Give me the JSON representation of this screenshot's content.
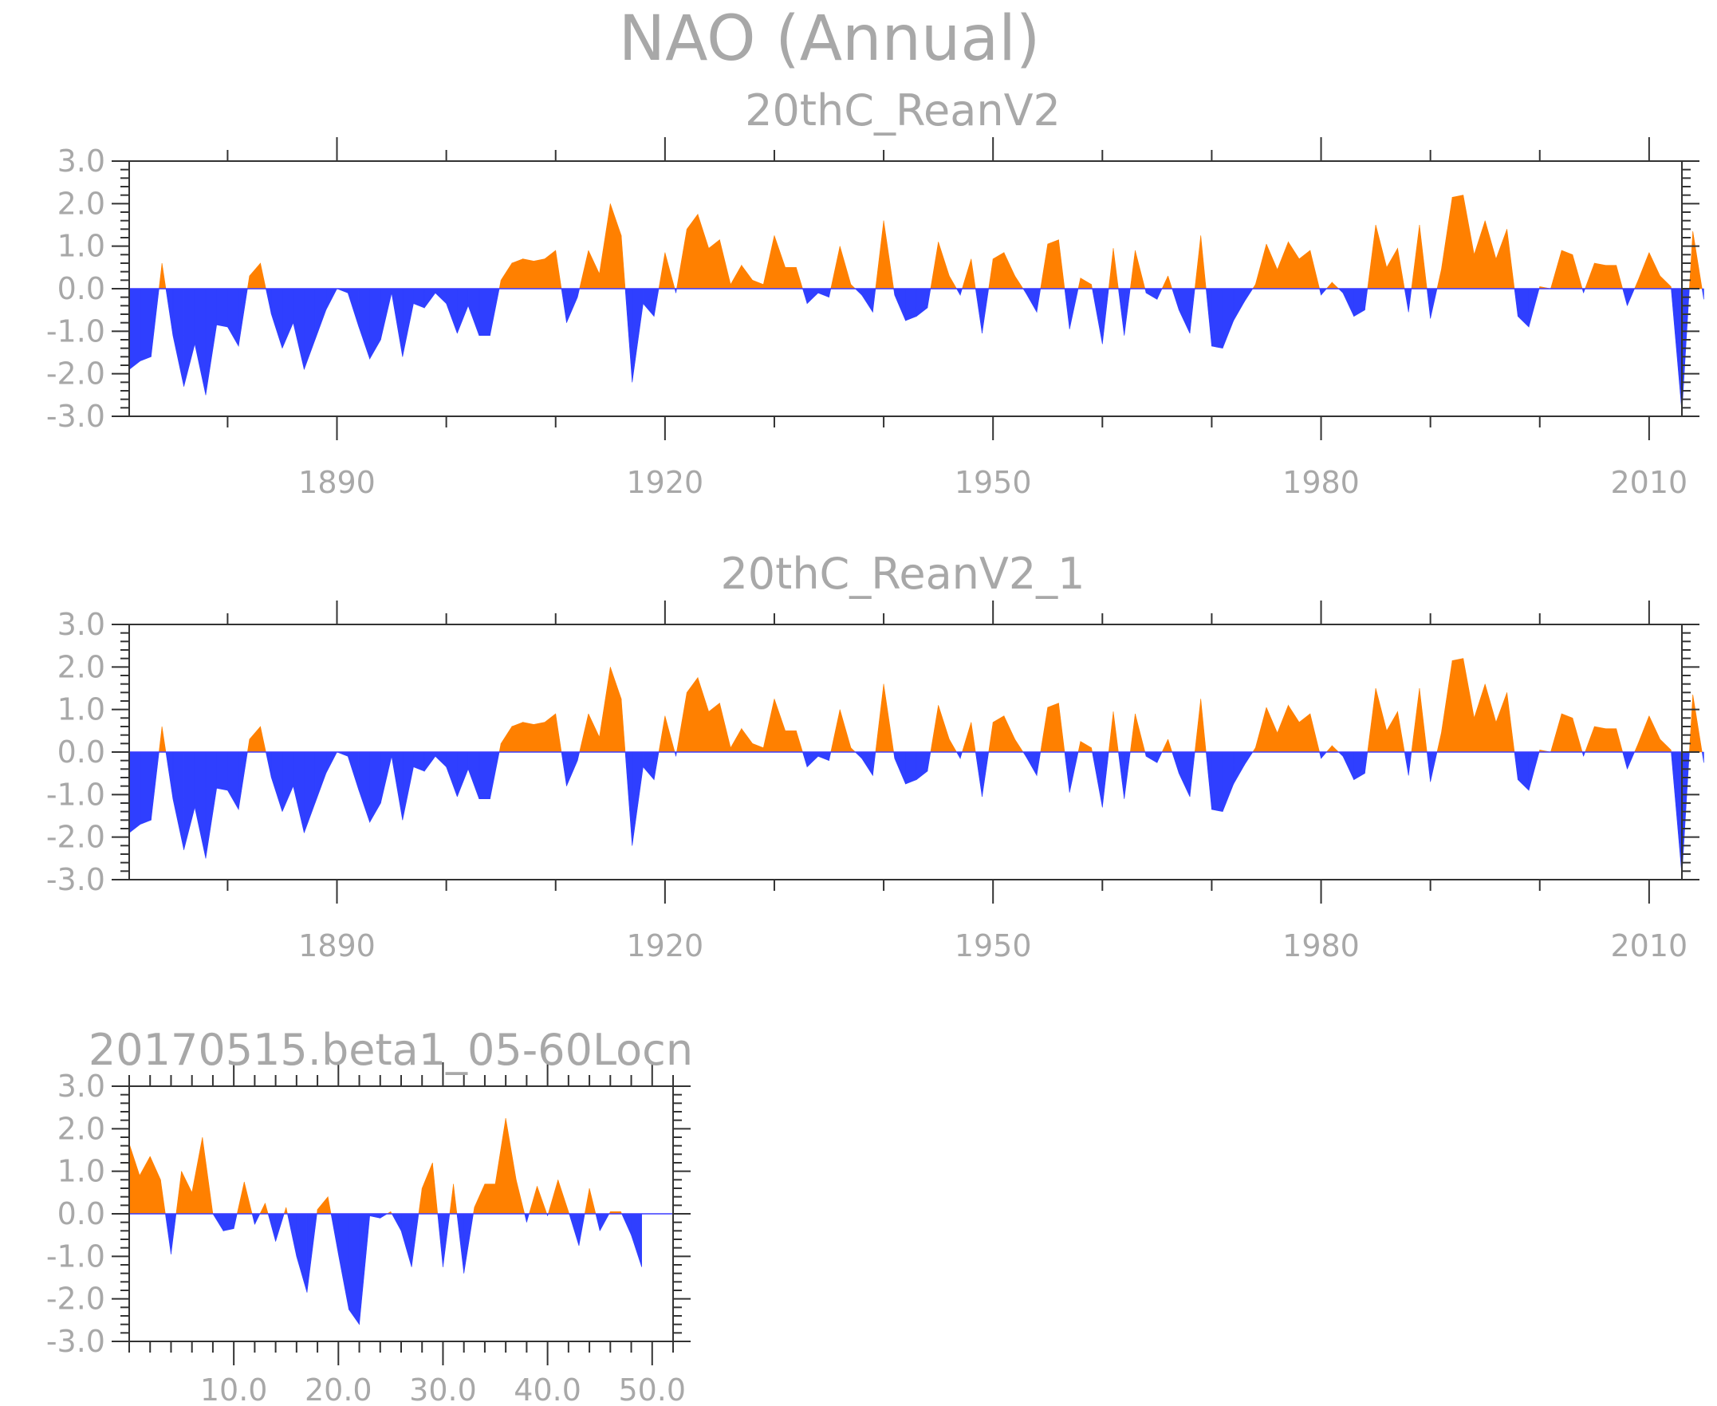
{
  "title": "NAO (Annual)",
  "colors": {
    "positive": "#ff8000",
    "negative": "#2f3fff",
    "text": "#a8a8a8",
    "axis": "#333333"
  },
  "chart_data": [
    {
      "type": "area",
      "title": "20thC_ReanV2",
      "xlim": [
        1871,
        2013
      ],
      "ylim": [
        -3.0,
        3.0
      ],
      "yticks": [
        "3.0",
        "2.0",
        "1.0",
        "0.0",
        "-1.0",
        "-2.0",
        "-3.0"
      ],
      "xticks": [
        1890,
        1920,
        1950,
        1980,
        2010
      ],
      "xtick_labels": [
        "1890",
        "1920",
        "1950",
        "1980",
        "2010"
      ],
      "x_start": 1871,
      "values": [
        -1.9,
        -1.7,
        -1.6,
        0.6,
        -1.1,
        -2.3,
        -1.3,
        -2.5,
        -0.85,
        -0.9,
        -1.35,
        0.3,
        0.6,
        -0.6,
        -1.4,
        -0.8,
        -1.9,
        -1.2,
        -0.5,
        0.0,
        -0.1,
        -0.9,
        -1.65,
        -1.2,
        -0.1,
        -1.6,
        -0.35,
        -0.45,
        -0.1,
        -0.35,
        -1.05,
        -0.4,
        -1.1,
        -1.1,
        0.2,
        0.6,
        0.7,
        0.65,
        0.7,
        0.9,
        -0.8,
        -0.2,
        0.9,
        0.35,
        2.0,
        1.25,
        -2.2,
        -0.35,
        -0.65,
        0.85,
        -0.1,
        1.4,
        1.75,
        0.95,
        1.15,
        0.1,
        0.55,
        0.2,
        0.1,
        1.25,
        0.5,
        0.5,
        -0.35,
        -0.1,
        -0.2,
        1.0,
        0.1,
        -0.15,
        -0.55,
        1.6,
        -0.15,
        -0.75,
        -0.65,
        -0.45,
        1.1,
        0.3,
        -0.15,
        0.7,
        -1.05,
        0.7,
        0.85,
        0.3,
        -0.1,
        -0.55,
        1.05,
        1.15,
        -0.95,
        0.25,
        0.1,
        -1.3,
        0.95,
        -1.1,
        0.9,
        -0.1,
        -0.25,
        0.3,
        -0.5,
        -1.05,
        1.25,
        -1.35,
        -1.4,
        -0.75,
        -0.3,
        0.1,
        1.05,
        0.45,
        1.1,
        0.7,
        0.9,
        -0.15,
        0.15,
        -0.1,
        -0.65,
        -0.5,
        1.5,
        0.5,
        0.95,
        -0.55,
        1.5,
        -0.7,
        0.45,
        2.15,
        2.2,
        0.8,
        1.6,
        0.7,
        1.4,
        -0.65,
        -0.9,
        0.05,
        0.0,
        0.9,
        0.8,
        -0.1,
        0.6,
        0.55,
        0.55,
        -0.4,
        0.2,
        0.85,
        0.3,
        0.05,
        -2.9,
        1.35,
        -0.25
      ]
    },
    {
      "type": "area",
      "title": "20thC_ReanV2_1",
      "xlim": [
        1871,
        2013
      ],
      "ylim": [
        -3.0,
        3.0
      ],
      "yticks": [
        "3.0",
        "2.0",
        "1.0",
        "0.0",
        "-1.0",
        "-2.0",
        "-3.0"
      ],
      "xticks": [
        1890,
        1920,
        1950,
        1980,
        2010
      ],
      "xtick_labels": [
        "1890",
        "1920",
        "1950",
        "1980",
        "2010"
      ],
      "x_start": 1871,
      "values": [
        -1.9,
        -1.7,
        -1.6,
        0.6,
        -1.1,
        -2.3,
        -1.3,
        -2.5,
        -0.85,
        -0.9,
        -1.35,
        0.3,
        0.6,
        -0.6,
        -1.4,
        -0.8,
        -1.9,
        -1.2,
        -0.5,
        0.0,
        -0.1,
        -0.9,
        -1.65,
        -1.2,
        -0.1,
        -1.6,
        -0.35,
        -0.45,
        -0.1,
        -0.35,
        -1.05,
        -0.4,
        -1.1,
        -1.1,
        0.2,
        0.6,
        0.7,
        0.65,
        0.7,
        0.9,
        -0.8,
        -0.2,
        0.9,
        0.35,
        2.0,
        1.25,
        -2.2,
        -0.35,
        -0.65,
        0.85,
        -0.1,
        1.4,
        1.75,
        0.95,
        1.15,
        0.1,
        0.55,
        0.2,
        0.1,
        1.25,
        0.5,
        0.5,
        -0.35,
        -0.1,
        -0.2,
        1.0,
        0.1,
        -0.15,
        -0.55,
        1.6,
        -0.15,
        -0.75,
        -0.65,
        -0.45,
        1.1,
        0.3,
        -0.15,
        0.7,
        -1.05,
        0.7,
        0.85,
        0.3,
        -0.1,
        -0.55,
        1.05,
        1.15,
        -0.95,
        0.25,
        0.1,
        -1.3,
        0.95,
        -1.1,
        0.9,
        -0.1,
        -0.25,
        0.3,
        -0.5,
        -1.05,
        1.25,
        -1.35,
        -1.4,
        -0.75,
        -0.3,
        0.1,
        1.05,
        0.45,
        1.1,
        0.7,
        0.9,
        -0.15,
        0.15,
        -0.1,
        -0.65,
        -0.5,
        1.5,
        0.5,
        0.95,
        -0.55,
        1.5,
        -0.7,
        0.45,
        2.15,
        2.2,
        0.8,
        1.6,
        0.7,
        1.4,
        -0.65,
        -0.9,
        0.05,
        0.0,
        0.9,
        0.8,
        -0.1,
        0.6,
        0.55,
        0.55,
        -0.4,
        0.2,
        0.85,
        0.3,
        0.05,
        -2.9,
        1.35,
        -0.25
      ]
    },
    {
      "type": "area",
      "title": "20170515.beta1_05-60Locn",
      "xlim": [
        0,
        52
      ],
      "ylim": [
        -3.0,
        3.0
      ],
      "yticks": [
        "3.0",
        "2.0",
        "1.0",
        "0.0",
        "-1.0",
        "-2.0",
        "-3.0"
      ],
      "xticks": [
        10,
        20,
        30,
        40,
        50
      ],
      "xtick_labels": [
        "10.0",
        "20.0",
        "30.0",
        "40.0",
        "50.0"
      ],
      "x_start": 0,
      "values": [
        1.65,
        0.9,
        1.35,
        0.8,
        -0.95,
        1.0,
        0.5,
        1.8,
        0.0,
        -0.4,
        -0.35,
        0.75,
        -0.25,
        0.25,
        -0.65,
        0.15,
        -1.0,
        -1.85,
        0.1,
        0.4,
        -0.95,
        -2.25,
        -2.6,
        -0.05,
        -0.1,
        0.05,
        -0.4,
        -1.25,
        0.6,
        1.2,
        -1.25,
        0.7,
        -1.4,
        0.15,
        0.7,
        0.7,
        2.25,
        0.8,
        -0.2,
        0.65,
        -0.05,
        0.8,
        0.05,
        -0.75,
        0.6,
        -0.4,
        0.05,
        0.05,
        -0.5,
        -1.25
      ]
    }
  ]
}
